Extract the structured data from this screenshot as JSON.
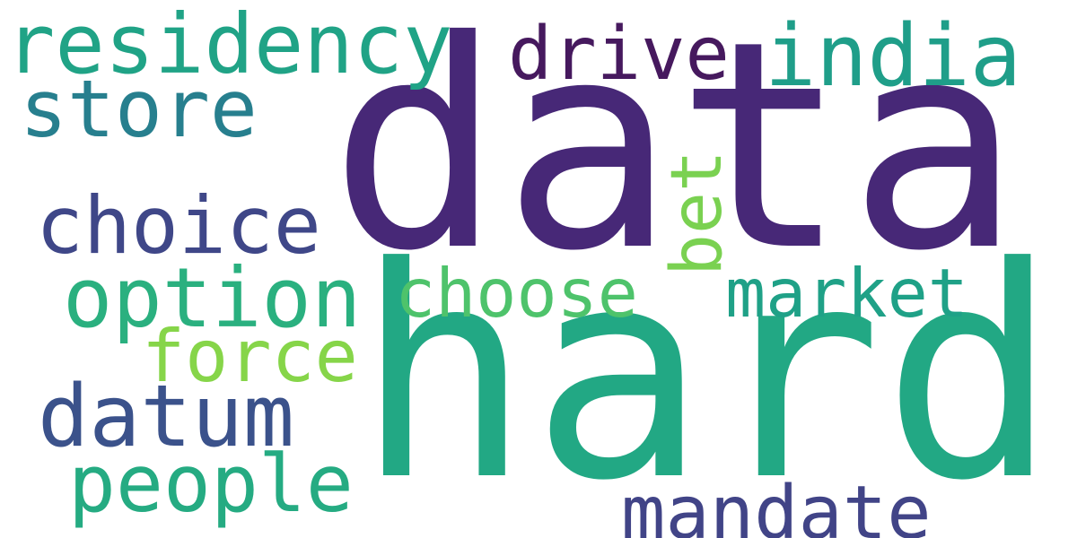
{
  "background": "#ffffff",
  "words": [
    {
      "id": "data",
      "text": "data",
      "color": "#472877"
    },
    {
      "id": "hard",
      "text": "hard",
      "color": "#22a884"
    },
    {
      "id": "residency",
      "text": "residency",
      "color": "#20a386"
    },
    {
      "id": "drive",
      "text": "drive",
      "color": "#46195e"
    },
    {
      "id": "india",
      "text": "india",
      "color": "#1f9e89"
    },
    {
      "id": "store",
      "text": "store",
      "color": "#277f8e"
    },
    {
      "id": "choice",
      "text": "choice",
      "color": "#3f4788"
    },
    {
      "id": "bet",
      "text": "bet",
      "color": "#7ad151"
    },
    {
      "id": "option",
      "text": "option",
      "color": "#2ab07f"
    },
    {
      "id": "choose",
      "text": "choose",
      "color": "#4ec36b"
    },
    {
      "id": "market",
      "text": "market",
      "color": "#1fa187"
    },
    {
      "id": "force",
      "text": "force",
      "color": "#86d549"
    },
    {
      "id": "datum",
      "text": "datum",
      "color": "#3b528b"
    },
    {
      "id": "people",
      "text": "people",
      "color": "#25ab82"
    },
    {
      "id": "mandate",
      "text": "mandate",
      "color": "#414487"
    }
  ]
}
